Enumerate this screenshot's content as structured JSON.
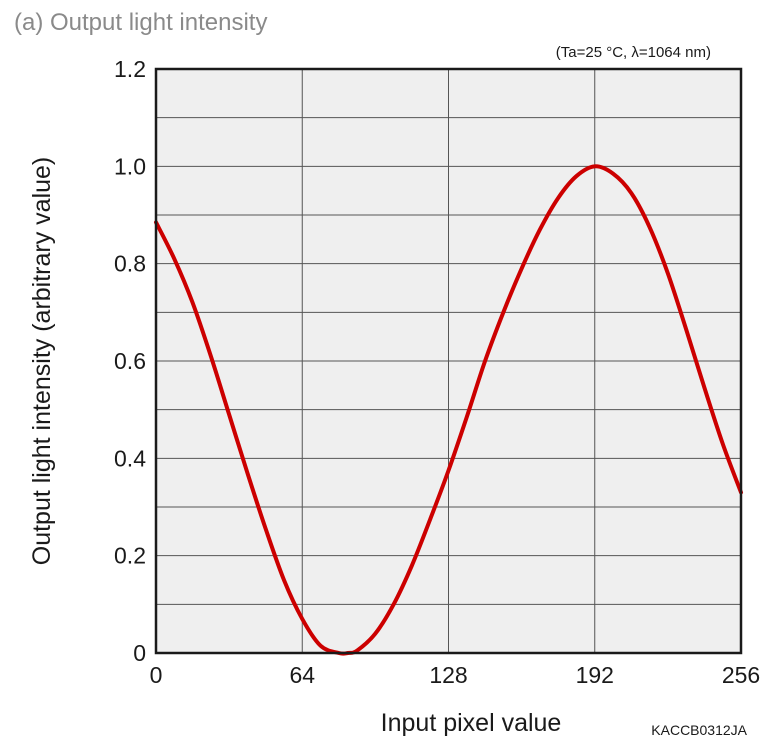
{
  "chart_data": {
    "type": "line",
    "title": "(a) Output light intensity",
    "condition_note": "(Ta=25 °C, λ=1064 nm)",
    "figure_code": "KACCB0312JA",
    "xlabel": "Input pixel value",
    "ylabel": "Output light intensity (arbitrary value)",
    "xlim": [
      0,
      256
    ],
    "ylim": [
      0,
      1.2
    ],
    "x_ticks": [
      0,
      64,
      128,
      192,
      256
    ],
    "x_tick_labels": [
      "0",
      "64",
      "128",
      "192",
      "256"
    ],
    "y_ticks": [
      0,
      0.2,
      0.4,
      0.6,
      0.8,
      1.0,
      1.2
    ],
    "y_tick_labels": [
      "0",
      "0.2",
      "0.4",
      "0.6",
      "0.8",
      "1.0",
      "1.2"
    ],
    "x_minor_grid": [],
    "y_minor_grid": [
      0.1,
      0.3,
      0.5,
      0.7,
      0.9,
      1.1
    ],
    "grid": true,
    "line_color": "#cc0000",
    "series": [
      {
        "name": "Output light intensity",
        "x": [
          0,
          8,
          16,
          24,
          32,
          40,
          48,
          56,
          64,
          72,
          80,
          84,
          88,
          96,
          104,
          112,
          120,
          128,
          136,
          144,
          152,
          160,
          168,
          176,
          184,
          192,
          200,
          208,
          216,
          224,
          232,
          240,
          248,
          256
        ],
        "y": [
          0.885,
          0.81,
          0.72,
          0.61,
          0.49,
          0.37,
          0.255,
          0.15,
          0.07,
          0.015,
          0.0,
          0.0,
          0.005,
          0.04,
          0.1,
          0.18,
          0.275,
          0.375,
          0.485,
          0.6,
          0.7,
          0.79,
          0.87,
          0.935,
          0.98,
          1.0,
          0.985,
          0.945,
          0.875,
          0.78,
          0.665,
          0.545,
          0.43,
          0.33
        ]
      }
    ]
  }
}
